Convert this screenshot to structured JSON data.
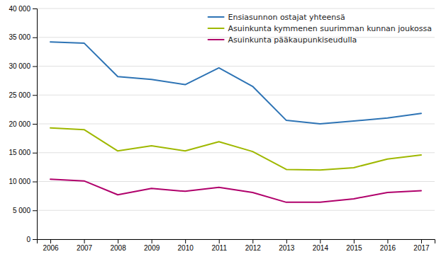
{
  "chart_data": {
    "type": "line",
    "x": [
      2006,
      2007,
      2008,
      2009,
      2010,
      2011,
      2012,
      2013,
      2014,
      2015,
      2016,
      2017
    ],
    "series": [
      {
        "name": "Ensiasunnon ostajat yhteensä",
        "color": "#2E74B5",
        "values": [
          34200,
          34000,
          28200,
          27700,
          26800,
          29700,
          26500,
          20600,
          20000,
          20500,
          21000,
          21800
        ]
      },
      {
        "name": "Asuinkunta kymmenen suurimman kunnan joukossa",
        "color": "#9FB800",
        "values": [
          19300,
          19000,
          15300,
          16200,
          15300,
          16900,
          15200,
          12100,
          12000,
          12400,
          13900,
          14600
        ]
      },
      {
        "name": "Asuinkunta pääkaupunkiseudulla",
        "color": "#B0006B",
        "values": [
          10400,
          10100,
          7700,
          8800,
          8300,
          9000,
          8100,
          6400,
          6400,
          7000,
          8100,
          8400
        ]
      }
    ],
    "xlim": [
      2005.6,
      2017.4
    ],
    "xticks": [
      2006,
      2007,
      2008,
      2009,
      2010,
      2011,
      2012,
      2013,
      2014,
      2015,
      2016,
      2017
    ],
    "ylim": [
      0,
      40000
    ],
    "yticks": [
      0,
      {
        "value": 5000,
        "label": "5 000"
      },
      {
        "value": 10000,
        "label": "10 000"
      },
      {
        "value": 15000,
        "label": "15 000"
      },
      {
        "value": 20000,
        "label": "20 000"
      },
      {
        "value": 25000,
        "label": "25 000"
      },
      {
        "value": 30000,
        "label": "30 000"
      },
      {
        "value": 35000,
        "label": "35 000"
      },
      {
        "value": 40000,
        "label": "40 000"
      }
    ],
    "grid": "y",
    "legend": "upper right"
  }
}
